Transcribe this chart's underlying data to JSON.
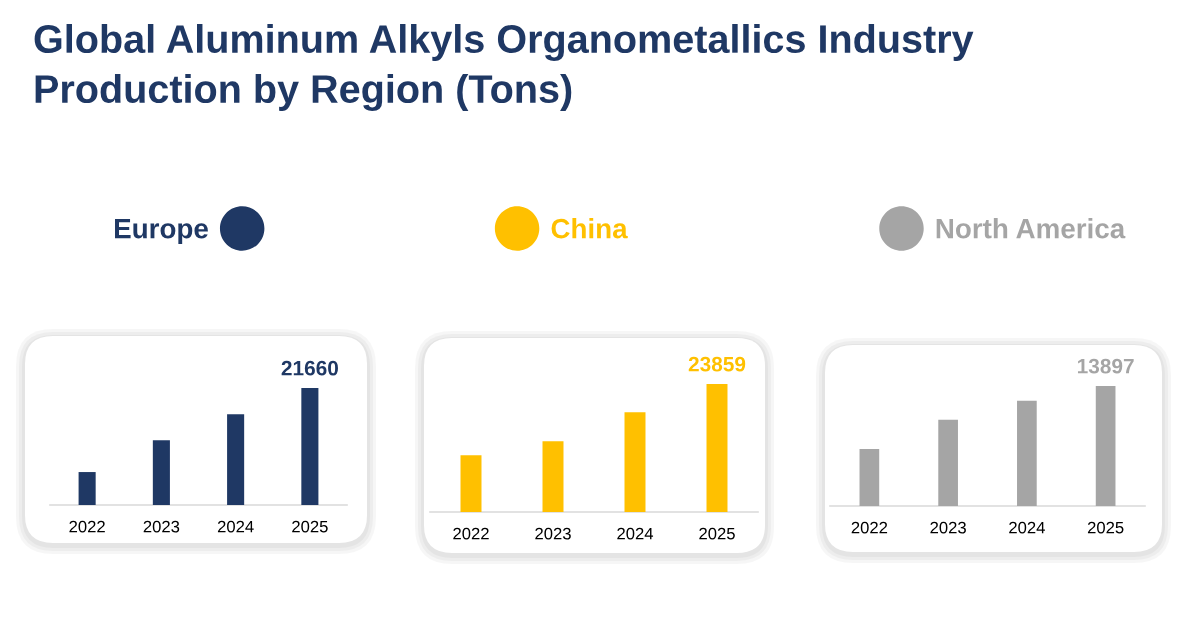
{
  "chart_data": [
    {
      "type": "bar",
      "title": "Global Aluminum Alkyls Organometallics Industry Production by Region (Tons)",
      "categories": [
        "2022",
        "2023",
        "2024",
        "2025"
      ],
      "series": [
        {
          "name": "Europe",
          "color": "#1f3864",
          "values": [
            6100,
            12000,
            16800,
            21660
          ],
          "value_labels": [
            null,
            null,
            null,
            "21660"
          ]
        }
      ],
      "tick_labels": "x",
      "legend": "top"
    },
    {
      "type": "bar",
      "categories": [
        "2022",
        "2023",
        "2024",
        "2025"
      ],
      "series": [
        {
          "name": "China",
          "color": "#ffc000",
          "values": [
            10600,
            13200,
            18600,
            23859
          ],
          "value_labels": [
            null,
            null,
            null,
            "23859"
          ]
        }
      ],
      "tick_labels": "x",
      "legend": "top"
    },
    {
      "type": "bar",
      "categories": [
        "2022",
        "2023",
        "2024",
        "2025"
      ],
      "series": [
        {
          "name": "North America",
          "color": "#a5a5a5",
          "values": [
            6600,
            10000,
            12200,
            13897
          ],
          "value_labels": [
            null,
            null,
            null,
            "13897"
          ]
        }
      ],
      "tick_labels": "x",
      "legend": "top"
    }
  ]
}
